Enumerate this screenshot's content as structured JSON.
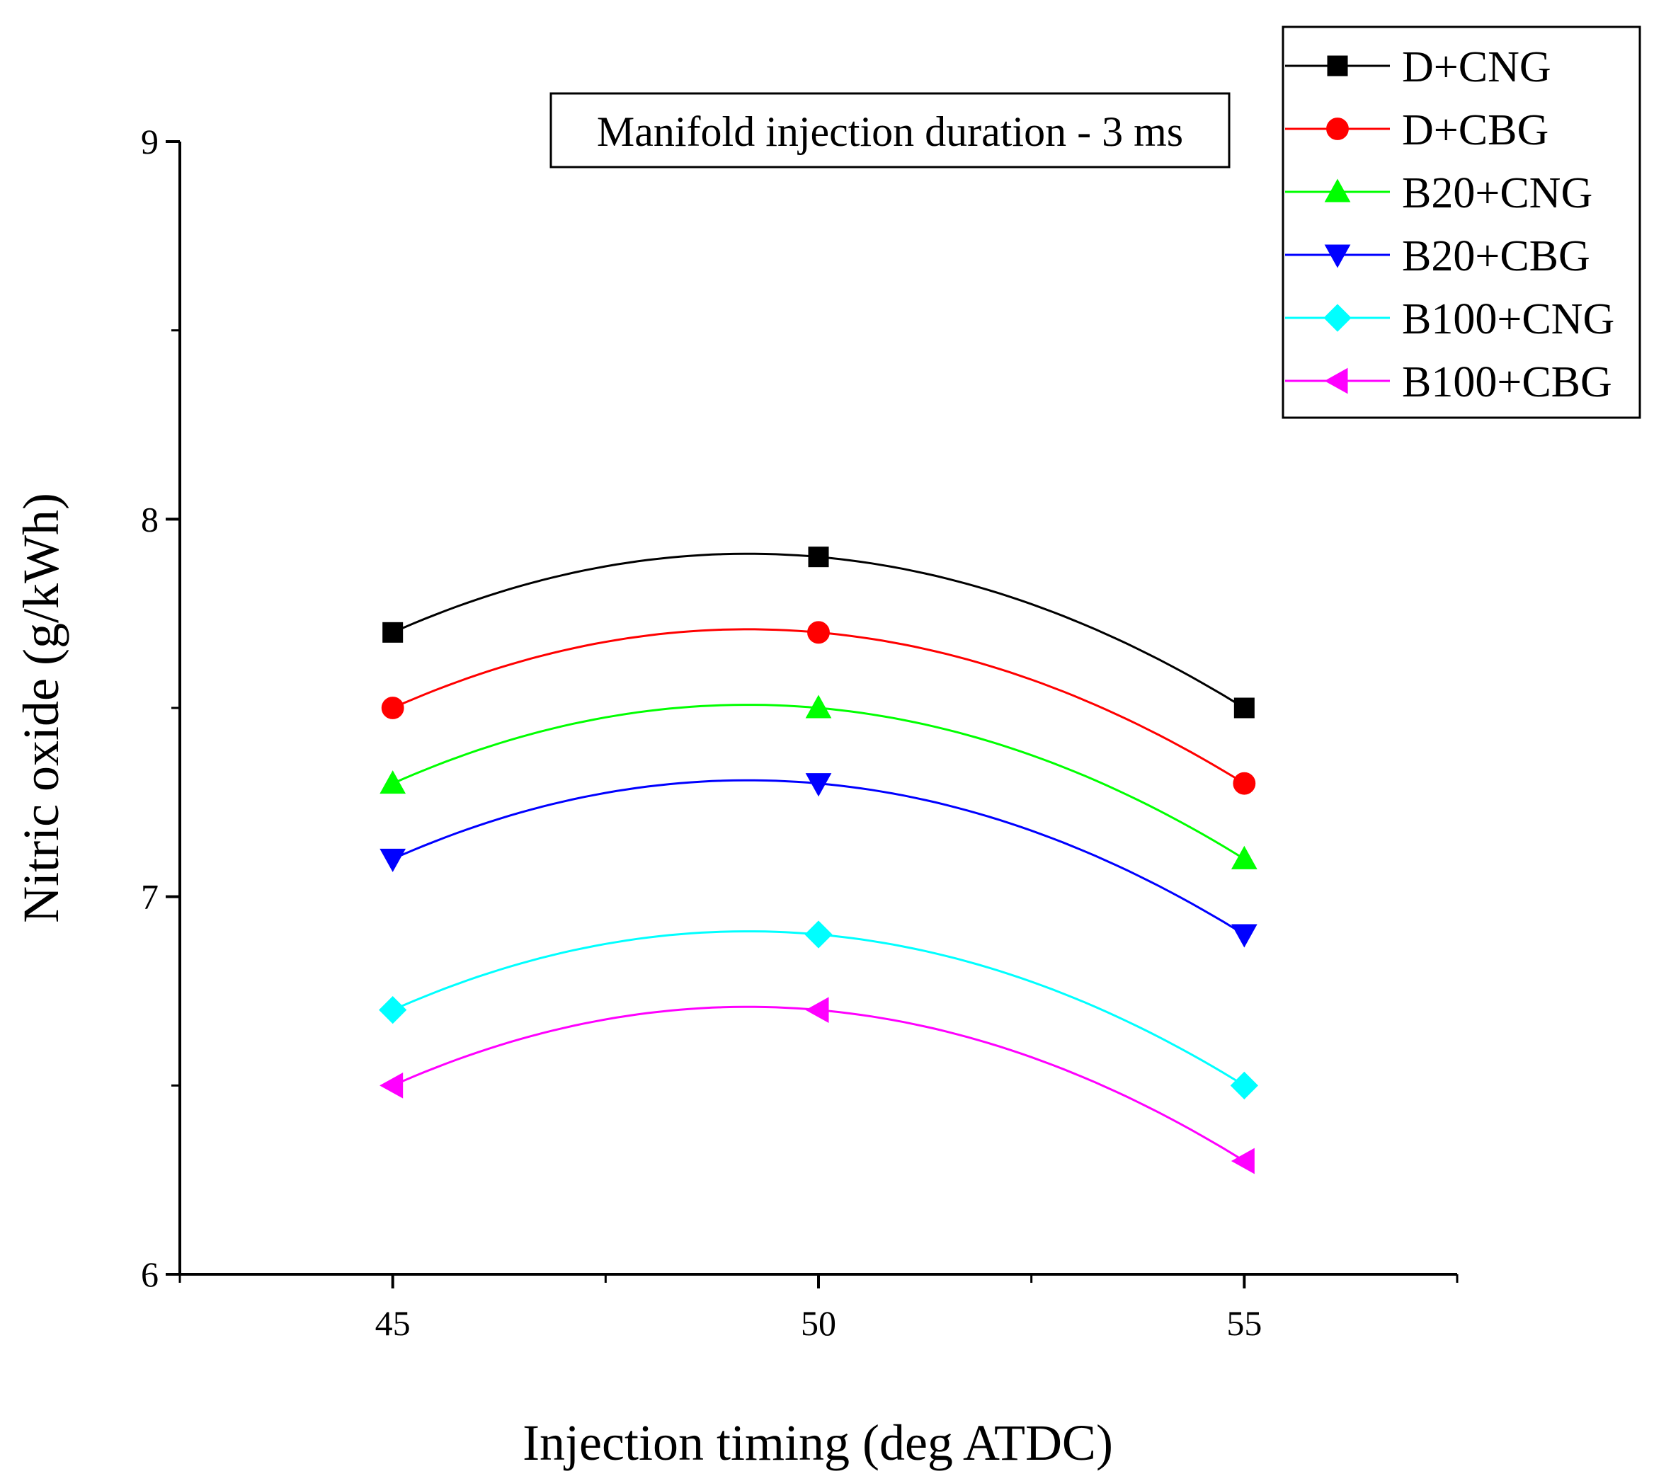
{
  "chart_data": {
    "type": "line",
    "title": "",
    "annotation": "Manifold injection duration - 3 ms",
    "xlabel": "Injection timing (deg ATDC)",
    "ylabel": "Nitric oxide (g/kWh)",
    "x": [
      45,
      50,
      55
    ],
    "xlim": [
      42.5,
      57.5
    ],
    "ylim": [
      6,
      9
    ],
    "xticks": [
      45,
      50,
      55
    ],
    "yticks": [
      6,
      7,
      8,
      9
    ],
    "grid": false,
    "legend_position": "top-right",
    "series": [
      {
        "name": "D+CNG",
        "color": "#000000",
        "marker": "square",
        "values": [
          7.7,
          7.9,
          7.5
        ]
      },
      {
        "name": "D+CBG",
        "color": "#ff0000",
        "marker": "circle",
        "values": [
          7.5,
          7.7,
          7.3
        ]
      },
      {
        "name": "B20+CNG",
        "color": "#00ff00",
        "marker": "triangle-up",
        "values": [
          7.3,
          7.5,
          7.1
        ]
      },
      {
        "name": "B20+CBG",
        "color": "#0000ff",
        "marker": "triangle-down",
        "values": [
          7.1,
          7.3,
          6.9
        ]
      },
      {
        "name": "B100+CNG",
        "color": "#00ffff",
        "marker": "diamond",
        "values": [
          6.7,
          6.9,
          6.5
        ]
      },
      {
        "name": "B100+CBG",
        "color": "#ff00ff",
        "marker": "triangle-left",
        "values": [
          6.5,
          6.7,
          6.3
        ]
      }
    ]
  }
}
